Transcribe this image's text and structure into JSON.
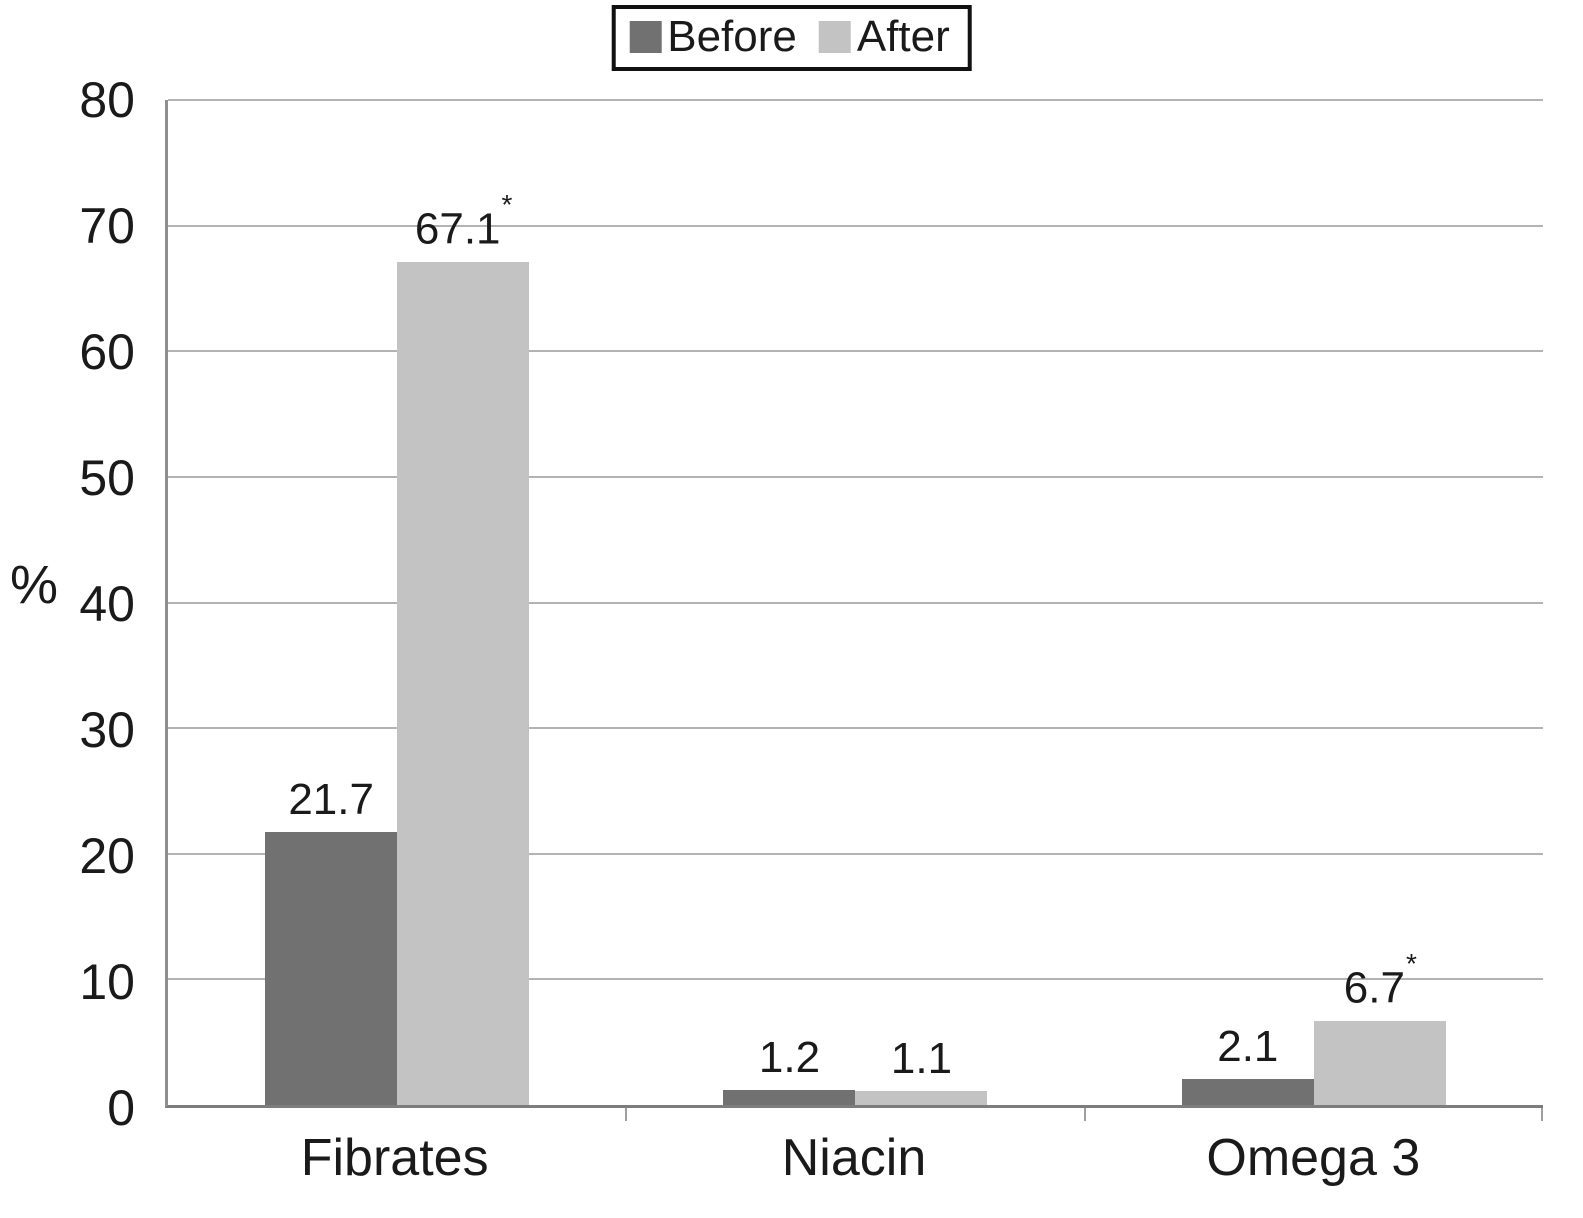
{
  "chart_data": {
    "type": "bar",
    "title": "",
    "categories": [
      "Fibrates",
      "Niacin",
      "Omega 3"
    ],
    "series": [
      {
        "name": "Before",
        "color": "#717171",
        "values": [
          21.7,
          1.2,
          2.1
        ],
        "value_labels": [
          "21.7",
          "1.2",
          "2.1"
        ],
        "stars": [
          false,
          false,
          false
        ]
      },
      {
        "name": "After",
        "color": "#c3c3c3",
        "values": [
          67.1,
          1.1,
          6.7
        ],
        "value_labels": [
          "67.1",
          "1.1",
          "6.7"
        ],
        "stars": [
          true,
          false,
          true
        ]
      }
    ],
    "xlabel": "",
    "ylabel": "%",
    "ylim": [
      0,
      80
    ],
    "yticks": [
      0,
      10,
      20,
      30,
      40,
      50,
      60,
      70,
      80
    ],
    "grid": true,
    "legend_position": "top-center",
    "star_symbol": "*"
  },
  "legend": {
    "items": [
      {
        "label": "Before",
        "color": "#717171"
      },
      {
        "label": "After",
        "color": "#c3c3c3"
      }
    ]
  }
}
